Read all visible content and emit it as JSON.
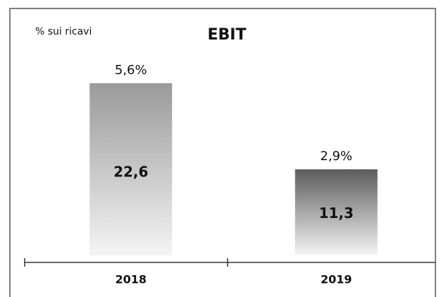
{
  "chart_data": {
    "type": "bar",
    "title": "EBIT",
    "subtitle": "% sui ricavi",
    "categories": [
      "2018",
      "2019"
    ],
    "values": [
      22.6,
      11.3
    ],
    "value_labels": [
      "22,6",
      "11,3"
    ],
    "margin_values": [
      5.6,
      2.9
    ],
    "margin_labels": [
      "5,6%",
      "2,9%"
    ],
    "colors": [
      "#9a9a9a",
      "#5c5c5c"
    ]
  }
}
